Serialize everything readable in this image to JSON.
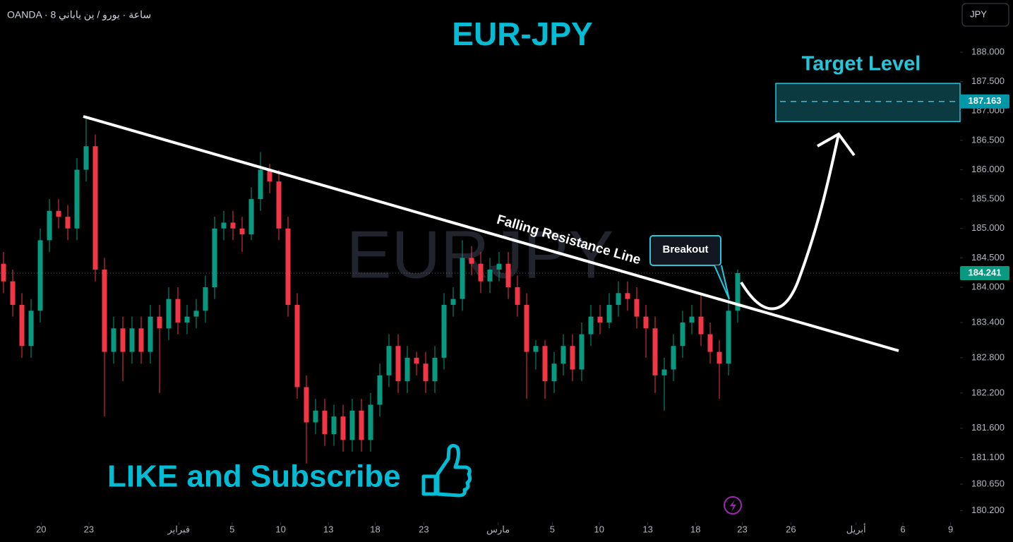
{
  "header": "OANDA · 8 ساعة · يورو / ين ياباني",
  "currency_button": "JPY",
  "chart_data": {
    "type": "candlestick",
    "title": "EUR-JPY",
    "watermark": "EURJPY",
    "up_color": "#089981",
    "down_color": "#f23645",
    "grid": false,
    "candles": [
      [
        184.4,
        184.6,
        183.9,
        184.1
      ],
      [
        184.1,
        184.3,
        183.5,
        183.7
      ],
      [
        183.7,
        183.9,
        182.8,
        183.0
      ],
      [
        183.0,
        183.8,
        182.8,
        183.6
      ],
      [
        183.6,
        185.0,
        183.4,
        184.8
      ],
      [
        184.8,
        185.5,
        184.6,
        185.3
      ],
      [
        185.3,
        185.5,
        185.0,
        185.2
      ],
      [
        185.2,
        185.4,
        184.8,
        185.0
      ],
      [
        185.0,
        186.2,
        184.8,
        186.0
      ],
      [
        186.0,
        186.9,
        185.8,
        186.4
      ],
      [
        186.4,
        186.6,
        184.1,
        184.3
      ],
      [
        184.3,
        184.5,
        181.8,
        182.9
      ],
      [
        182.9,
        183.5,
        182.7,
        183.3
      ],
      [
        183.3,
        183.5,
        182.4,
        182.9
      ],
      [
        182.9,
        183.5,
        182.7,
        183.3
      ],
      [
        183.3,
        183.5,
        182.7,
        182.9
      ],
      [
        182.9,
        183.7,
        182.7,
        183.5
      ],
      [
        183.5,
        183.7,
        182.2,
        183.3
      ],
      [
        183.3,
        184.0,
        183.1,
        183.8
      ],
      [
        183.8,
        184.0,
        183.2,
        183.4
      ],
      [
        183.4,
        183.7,
        183.2,
        183.5
      ],
      [
        183.5,
        183.8,
        183.3,
        183.6
      ],
      [
        183.6,
        184.2,
        183.4,
        184.0
      ],
      [
        184.0,
        185.2,
        183.8,
        185.0
      ],
      [
        185.0,
        185.3,
        184.8,
        185.1
      ],
      [
        185.1,
        185.3,
        184.8,
        185.0
      ],
      [
        185.0,
        185.2,
        184.6,
        184.9
      ],
      [
        184.9,
        185.7,
        184.8,
        185.5
      ],
      [
        185.5,
        186.3,
        185.3,
        186.0
      ],
      [
        186.0,
        186.1,
        185.6,
        185.8
      ],
      [
        185.8,
        186.0,
        184.8,
        185.0
      ],
      [
        185.0,
        185.2,
        183.5,
        183.7
      ],
      [
        183.7,
        183.9,
        182.1,
        182.3
      ],
      [
        182.3,
        182.5,
        181.0,
        181.7
      ],
      [
        181.7,
        182.1,
        181.5,
        181.9
      ],
      [
        181.9,
        182.1,
        181.3,
        181.5
      ],
      [
        181.5,
        182.0,
        181.3,
        181.8
      ],
      [
        181.8,
        182.0,
        181.2,
        181.4
      ],
      [
        181.4,
        182.1,
        181.2,
        181.9
      ],
      [
        181.9,
        182.1,
        181.2,
        181.4
      ],
      [
        181.4,
        182.2,
        181.2,
        182.0
      ],
      [
        182.0,
        182.7,
        181.8,
        182.5
      ],
      [
        182.5,
        183.2,
        182.3,
        183.0
      ],
      [
        183.0,
        183.2,
        182.2,
        182.4
      ],
      [
        182.4,
        183.0,
        182.2,
        182.8
      ],
      [
        182.8,
        182.9,
        182.5,
        182.7
      ],
      [
        182.7,
        182.9,
        182.2,
        182.4
      ],
      [
        182.4,
        183.0,
        182.2,
        182.8
      ],
      [
        182.8,
        183.9,
        182.6,
        183.7
      ],
      [
        183.7,
        184.0,
        183.5,
        183.8
      ],
      [
        183.8,
        184.8,
        183.6,
        184.5
      ],
      [
        184.5,
        184.7,
        184.2,
        184.4
      ],
      [
        184.4,
        184.6,
        183.9,
        184.1
      ],
      [
        184.1,
        184.5,
        183.9,
        184.3
      ],
      [
        184.3,
        184.6,
        184.1,
        184.4
      ],
      [
        184.4,
        184.6,
        183.8,
        184.0
      ],
      [
        184.0,
        184.2,
        183.5,
        183.7
      ],
      [
        183.7,
        183.9,
        182.1,
        182.9
      ],
      [
        182.9,
        183.1,
        182.6,
        183.0
      ],
      [
        183.0,
        183.1,
        182.1,
        182.4
      ],
      [
        182.4,
        182.9,
        182.2,
        182.7
      ],
      [
        182.7,
        183.2,
        182.5,
        183.0
      ],
      [
        183.0,
        183.2,
        182.4,
        182.6
      ],
      [
        182.6,
        183.4,
        182.4,
        183.2
      ],
      [
        183.2,
        183.7,
        183.0,
        183.5
      ],
      [
        183.5,
        183.7,
        183.2,
        183.4
      ],
      [
        183.4,
        183.9,
        183.3,
        183.7
      ],
      [
        183.7,
        184.1,
        183.5,
        183.9
      ],
      [
        183.9,
        184.1,
        183.6,
        183.8
      ],
      [
        183.8,
        184.0,
        183.3,
        183.5
      ],
      [
        183.5,
        183.7,
        182.8,
        183.3
      ],
      [
        183.3,
        183.5,
        182.2,
        182.5
      ],
      [
        182.5,
        182.8,
        181.9,
        182.6
      ],
      [
        182.6,
        183.2,
        182.4,
        183.0
      ],
      [
        183.0,
        183.6,
        182.8,
        183.4
      ],
      [
        183.4,
        183.7,
        183.2,
        183.5
      ],
      [
        183.5,
        183.9,
        183.0,
        183.2
      ],
      [
        183.2,
        183.4,
        182.7,
        182.9
      ],
      [
        182.9,
        183.1,
        182.1,
        182.7
      ],
      [
        182.7,
        183.8,
        182.5,
        183.6
      ],
      [
        183.6,
        184.3,
        183.4,
        184.241
      ]
    ],
    "xlim": [
      -0.385,
      104.23
    ],
    "ylim": [
      180.0,
      188.889
    ],
    "xticks": [
      {
        "value": 4.1,
        "label": "20"
      },
      {
        "value": 9.3,
        "label": "23"
      },
      {
        "value": 19.1,
        "label": "فبراير"
      },
      {
        "value": 24.9,
        "label": "5"
      },
      {
        "value": 30.2,
        "label": "10"
      },
      {
        "value": 35.4,
        "label": "13"
      },
      {
        "value": 40.5,
        "label": "18"
      },
      {
        "value": 45.8,
        "label": "23"
      },
      {
        "value": 53.9,
        "label": "مارس"
      },
      {
        "value": 59.8,
        "label": "5"
      },
      {
        "value": 64.9,
        "label": "10"
      },
      {
        "value": 70.2,
        "label": "13"
      },
      {
        "value": 75.4,
        "label": "18"
      },
      {
        "value": 80.5,
        "label": "23"
      },
      {
        "value": 85.8,
        "label": "26"
      },
      {
        "value": 92.9,
        "label": "أبريل"
      },
      {
        "value": 98,
        "label": "6"
      },
      {
        "value": 103.2,
        "label": "9"
      }
    ],
    "yticks": [
      {
        "value": 188,
        "label": "188.000"
      },
      {
        "value": 187.5,
        "label": "187.500"
      },
      {
        "value": 187,
        "label": "187.000"
      },
      {
        "value": 186.5,
        "label": "186.500"
      },
      {
        "value": 186,
        "label": "186.000"
      },
      {
        "value": 185.5,
        "label": "185.500"
      },
      {
        "value": 185,
        "label": "185.000"
      },
      {
        "value": 184.5,
        "label": "184.500"
      },
      {
        "value": 184,
        "label": "184.000"
      },
      {
        "value": 183.4,
        "label": "183.400"
      },
      {
        "value": 182.8,
        "label": "182.800"
      },
      {
        "value": 182.2,
        "label": "182.200"
      },
      {
        "value": 181.6,
        "label": "181.600"
      },
      {
        "value": 181.1,
        "label": "181.100"
      },
      {
        "value": 180.65,
        "label": "180.650"
      },
      {
        "value": 180.2,
        "label": "180.200"
      }
    ],
    "resistance_line": {
      "label": "Falling Resistance Line",
      "x": [
        8.69,
        97.54
      ],
      "y": [
        186.907,
        182.919
      ]
    },
    "target": {
      "label": "Target Level",
      "value": 187.163,
      "zone": [
        186.82,
        187.47
      ]
    },
    "breakout_label": "Breakout",
    "cta": "LIKE and Subscribe"
  }
}
